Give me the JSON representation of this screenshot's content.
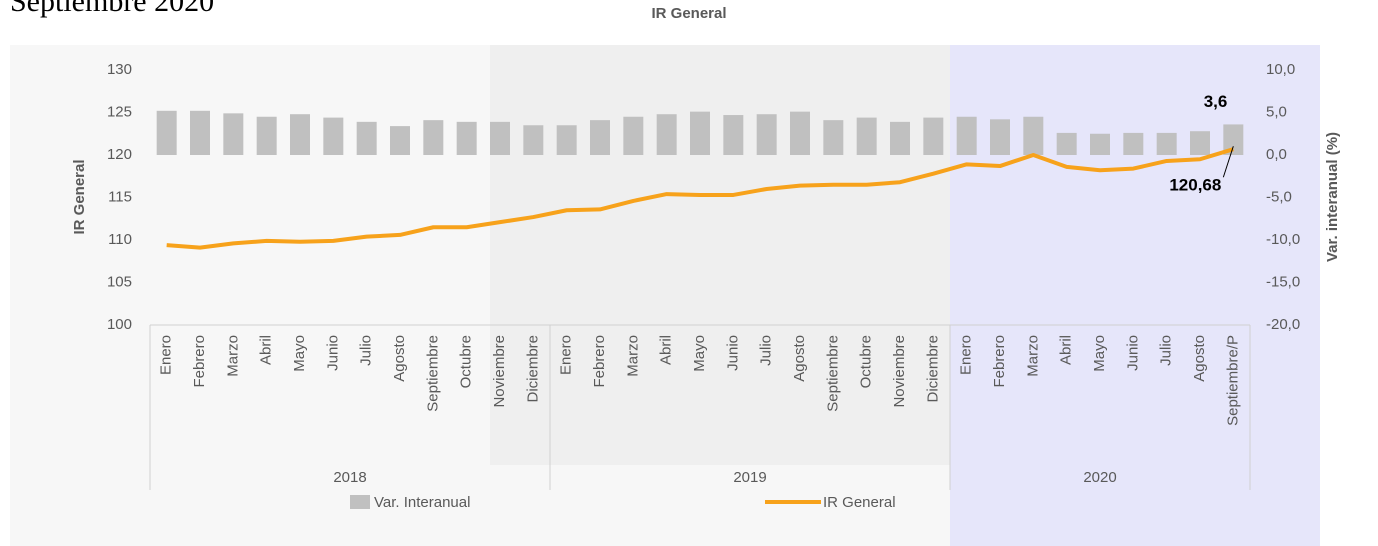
{
  "heading": "Septiembre 2020",
  "chart_data": {
    "type": "bar-line",
    "title": "IR General",
    "y_label": "IR General",
    "y2_label": "Var. interanual (%)",
    "groups": [
      {
        "label": "2018",
        "categories": [
          "Enero",
          "Febrero",
          "Marzo",
          "Abril",
          "Mayo",
          "Junio",
          "Julio",
          "Agosto",
          "Septiembre",
          "Octubre",
          "Noviembre",
          "Diciembre"
        ]
      },
      {
        "label": "2019",
        "categories": [
          "Enero",
          "Febrero",
          "Marzo",
          "Abril",
          "Mayo",
          "Junio",
          "Julio",
          "Agosto",
          "Septiembre",
          "Octubre",
          "Noviembre",
          "Diciembre"
        ]
      },
      {
        "label": "2020",
        "categories": [
          "Enero",
          "Febrero",
          "Marzo",
          "Abril",
          "Mayo",
          "Junio",
          "Julio",
          "Agosto",
          "Septiembre/P"
        ]
      }
    ],
    "series": [
      {
        "name": "Var. Interanual",
        "type": "bar",
        "axis": "y2",
        "color": "#c0c0c0",
        "values": [
          5.2,
          5.2,
          4.9,
          4.5,
          4.8,
          4.4,
          3.9,
          3.4,
          4.1,
          3.9,
          3.9,
          3.5,
          3.5,
          4.1,
          4.5,
          4.8,
          5.1,
          4.7,
          4.8,
          5.1,
          4.1,
          4.4,
          3.9,
          4.4,
          4.5,
          4.2,
          4.5,
          2.6,
          2.5,
          2.6,
          2.6,
          2.8,
          3.6
        ],
        "value_labels": [
          null,
          null,
          null,
          null,
          null,
          null,
          null,
          null,
          null,
          null,
          null,
          null,
          null,
          null,
          null,
          null,
          null,
          null,
          null,
          null,
          null,
          null,
          null,
          null,
          null,
          null,
          null,
          null,
          null,
          null,
          null,
          null,
          "3,6"
        ]
      },
      {
        "name": "IR General",
        "type": "line",
        "axis": "y",
        "color": "#f7a21b",
        "values": [
          109.4,
          109.1,
          109.6,
          109.9,
          109.8,
          109.9,
          110.4,
          110.6,
          111.5,
          111.5,
          112.1,
          112.7,
          113.5,
          113.6,
          114.6,
          115.4,
          115.3,
          115.3,
          116.0,
          116.4,
          116.5,
          116.5,
          116.8,
          117.8,
          118.9,
          118.7,
          120.0,
          118.6,
          118.2,
          118.4,
          119.3,
          119.5,
          120.68
        ],
        "value_labels": [
          null,
          null,
          null,
          null,
          null,
          null,
          null,
          null,
          null,
          null,
          null,
          null,
          null,
          null,
          null,
          null,
          null,
          null,
          null,
          null,
          null,
          null,
          null,
          null,
          null,
          null,
          null,
          null,
          null,
          null,
          null,
          null,
          "120,68"
        ]
      }
    ],
    "ylim": [
      100,
      130
    ],
    "yticks": [
      100,
      105,
      110,
      115,
      120,
      125,
      130
    ],
    "y2lim": [
      -20,
      10
    ],
    "y2ticks": [
      {
        "value": -20,
        "label": "-20,0"
      },
      {
        "value": -15,
        "label": "-15,0"
      },
      {
        "value": -10,
        "label": "-10,0"
      },
      {
        "value": -5,
        "label": "-5,0"
      },
      {
        "value": 0,
        "label": "0,0"
      },
      {
        "value": 5,
        "label": "5,0"
      },
      {
        "value": 10,
        "label": "10,0"
      }
    ],
    "legend": "bottom"
  }
}
